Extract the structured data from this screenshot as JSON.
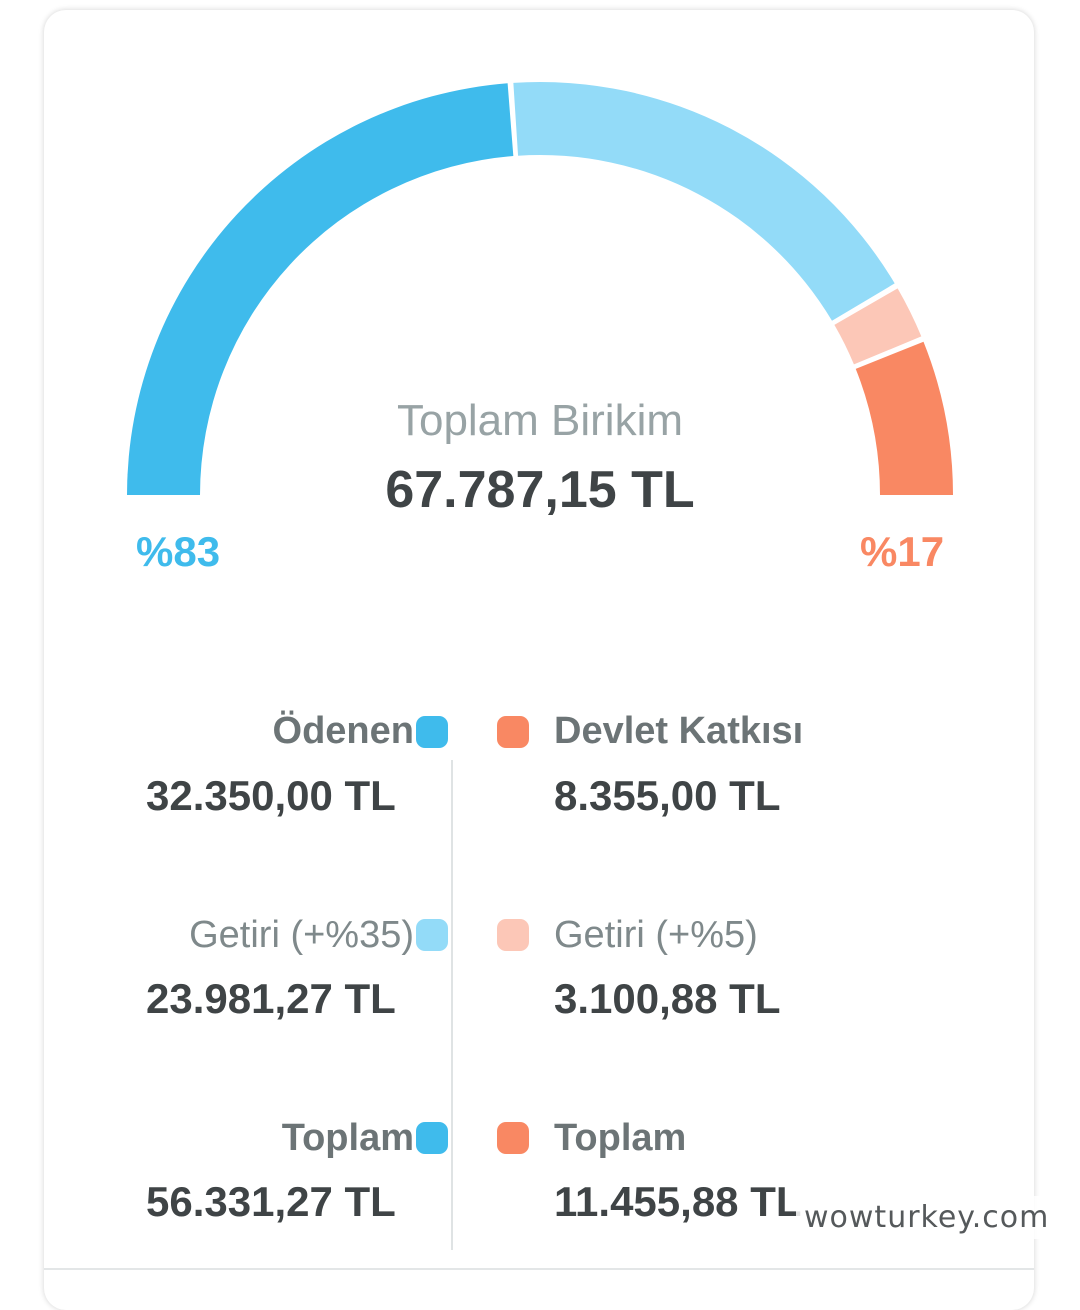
{
  "summary": {
    "title": "Toplam Birikim",
    "total": "67.787,15 TL",
    "left_percent": "%83",
    "right_percent": "%17"
  },
  "colors": {
    "paid": "#3fbbec",
    "paid_return": "#93dbf8",
    "state": "#f98863",
    "state_return": "#fcc7b7"
  },
  "chart_data": {
    "type": "gauge",
    "segments": [
      {
        "name": "Ödenen",
        "value": 32350.0,
        "color": "#3fbbec"
      },
      {
        "name": "Getiri (+%35)",
        "value": 23981.27,
        "color": "#93dbf8"
      },
      {
        "name": "Getiri (+%5)",
        "value": 3100.88,
        "color": "#fcc7b7"
      },
      {
        "name": "Devlet Katkısı",
        "value": 8355.0,
        "color": "#f98863"
      }
    ]
  },
  "left": {
    "paid_label": "Ödenen",
    "paid_value": "32.350,00 TL",
    "return_label": "Getiri (+%35)",
    "return_value": "23.981,27 TL",
    "total_label": "Toplam",
    "total_value": "56.331,27 TL"
  },
  "right": {
    "state_label": "Devlet Katkısı",
    "state_value": "8.355,00 TL",
    "return_label": "Getiri (+%5)",
    "return_value": "3.100,88 TL",
    "total_label": "Toplam",
    "total_value": "11.455,88 TL"
  },
  "watermark": "wowturkey.com"
}
